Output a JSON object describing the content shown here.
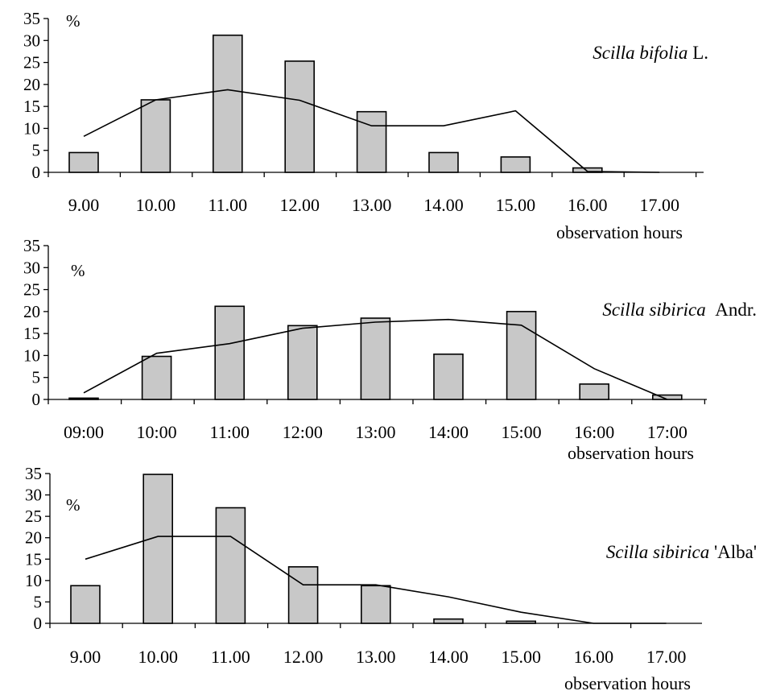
{
  "chart_data": [
    {
      "type": "bar",
      "categories": [
        "9.00",
        "10.00",
        "11.00",
        "12.00",
        "13.00",
        "14.00",
        "15.00",
        "16.00",
        "17.00"
      ],
      "series": [
        {
          "kind": "bar",
          "values": [
            4.5,
            16.5,
            31.2,
            25.3,
            13.8,
            4.5,
            3.5,
            1.0,
            0
          ]
        },
        {
          "kind": "line",
          "values": [
            8.2,
            16.5,
            18.8,
            16.4,
            10.6,
            10.6,
            14.0,
            0.2,
            0
          ]
        }
      ],
      "y_unit": "%",
      "xlabel": "observation hours",
      "species_italic": "Scilla bifolia",
      "species_suffix": " L.",
      "ylim": [
        0,
        35
      ],
      "yticks": [
        "0",
        "5",
        "10",
        "15",
        "20",
        "25",
        "30",
        "35"
      ]
    },
    {
      "type": "bar",
      "categories": [
        "09:00",
        "10:00",
        "11:00",
        "12:00",
        "13:00",
        "14:00",
        "15:00",
        "16:00",
        "17:00"
      ],
      "series": [
        {
          "kind": "bar",
          "values": [
            0.3,
            9.8,
            21.2,
            16.8,
            18.5,
            10.3,
            20.0,
            3.5,
            1.0
          ]
        },
        {
          "kind": "line",
          "values": [
            1.5,
            10.5,
            12.7,
            16.2,
            17.6,
            18.2,
            16.9,
            7.0,
            0
          ]
        }
      ],
      "y_unit": "%",
      "xlabel": "observation hours",
      "species_italic": "Scilla sibirica",
      "species_suffix": "  Andr.",
      "ylim": [
        0,
        35
      ],
      "yticks": [
        "0",
        "5",
        "10",
        "15",
        "20",
        "25",
        "30",
        "35"
      ]
    },
    {
      "type": "bar",
      "categories": [
        "9.00",
        "10.00",
        "11.00",
        "12.00",
        "13.00",
        "14.00",
        "15.00",
        "16.00",
        "17.00"
      ],
      "series": [
        {
          "kind": "bar",
          "values": [
            8.8,
            34.8,
            27.0,
            13.2,
            8.8,
            1.0,
            0.5,
            0,
            0
          ]
        },
        {
          "kind": "line",
          "values": [
            15.0,
            20.3,
            20.3,
            9.0,
            9.0,
            6.2,
            2.6,
            0,
            0
          ]
        }
      ],
      "y_unit": "%",
      "xlabel": "observation hours",
      "species_italic": "Scilla sibirica",
      "species_suffix": " 'Alba'",
      "ylim": [
        0,
        35
      ],
      "yticks": [
        "0",
        "5",
        "10",
        "15",
        "20",
        "25",
        "30",
        "35"
      ]
    }
  ]
}
